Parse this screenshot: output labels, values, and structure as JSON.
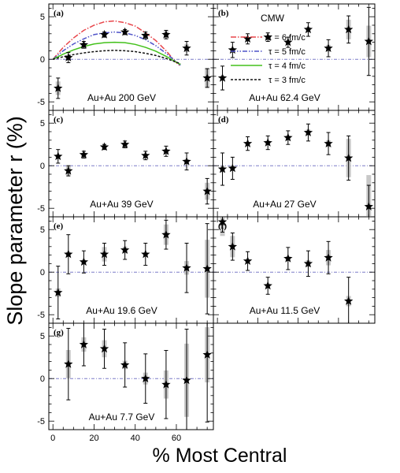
{
  "figure": {
    "ylabel": "Slope parameter r (%)",
    "xlabel": "% Most Central"
  },
  "chart_data": {
    "type": "scatter",
    "xlim": [
      -2,
      78
    ],
    "ylim": [
      -6,
      6.5
    ],
    "x_ticks": [
      0,
      20,
      40,
      60
    ],
    "y_ticks": [
      -5,
      0,
      5
    ],
    "colors": {
      "tau6": "#e8474c",
      "tau5": "#4f53c8",
      "tau4": "#43c11b",
      "tau3": "#111111",
      "sys_band": "#c8c8c8",
      "zero_line": "#7c7cc8"
    },
    "legend": {
      "title": "CMW",
      "location": "top-right of panel (a) row",
      "entries": [
        {
          "label": "τ = 6 fm/c",
          "style": "dashdot",
          "color_key": "tau6"
        },
        {
          "label": "τ = 5 fm/c",
          "style": "dashdotdot",
          "color_key": "tau5"
        },
        {
          "label": "τ = 4 fm/c",
          "style": "solid",
          "color_key": "tau4"
        },
        {
          "label": "τ = 3 fm/c",
          "style": "dashed",
          "color_key": "tau3"
        }
      ]
    },
    "model_curves": [
      {
        "name": "τ = 6 fm/c",
        "color_key": "tau6",
        "dash": "7,2,1.5,2",
        "x": [
          0,
          5,
          10,
          15,
          20,
          25,
          30,
          35,
          40,
          45,
          50,
          55,
          60,
          62
        ],
        "y": [
          0,
          1.4,
          2.5,
          3.4,
          4.0,
          4.4,
          4.5,
          4.3,
          3.9,
          3.1,
          2.2,
          1.0,
          -0.4,
          -0.8
        ]
      },
      {
        "name": "τ = 5 fm/c",
        "color_key": "tau5",
        "dash": "6,2,1.5,2,1.5,2",
        "x": [
          0,
          5,
          10,
          15,
          20,
          25,
          30,
          35,
          40,
          45,
          50,
          55,
          60,
          62
        ],
        "y": [
          0,
          1.0,
          1.8,
          2.4,
          2.9,
          3.1,
          3.2,
          3.1,
          2.8,
          2.3,
          1.6,
          0.7,
          -0.3,
          -0.7
        ]
      },
      {
        "name": "τ = 4 fm/c",
        "color_key": "tau4",
        "dash": "",
        "x": [
          0,
          5,
          10,
          15,
          20,
          25,
          30,
          35,
          40,
          45,
          50,
          55,
          60,
          62
        ],
        "y": [
          0,
          0.6,
          1.1,
          1.5,
          1.8,
          1.95,
          2.0,
          1.95,
          1.75,
          1.4,
          0.95,
          0.35,
          -0.35,
          -0.6
        ]
      },
      {
        "name": "τ = 3 fm/c",
        "color_key": "tau3",
        "dash": "3,2",
        "x": [
          0,
          5,
          10,
          15,
          20,
          25,
          30,
          35,
          40,
          45,
          50,
          55,
          60,
          62
        ],
        "y": [
          0,
          0.3,
          0.55,
          0.75,
          0.9,
          1.0,
          1.05,
          1.0,
          0.9,
          0.7,
          0.45,
          0.1,
          -0.35,
          -0.5
        ]
      }
    ],
    "panels": [
      {
        "id": "a",
        "label": "(a)",
        "system": "Au+Au 200 GeV",
        "curves": true,
        "points": [
          {
            "x": 2.5,
            "y": -3.4,
            "err": 1.2,
            "sys": 1.6
          },
          {
            "x": 7.5,
            "y": 0.2,
            "err": 0.6,
            "sys": 0.5
          },
          {
            "x": 15,
            "y": 1.7,
            "err": 0.4,
            "sys": 0.4
          },
          {
            "x": 25,
            "y": 2.9,
            "err": 0.3,
            "sys": 0.3
          },
          {
            "x": 35,
            "y": 3.2,
            "err": 0.3,
            "sys": 0.35
          },
          {
            "x": 45,
            "y": 2.8,
            "err": 0.4,
            "sys": 0.4
          },
          {
            "x": 55,
            "y": 2.9,
            "err": 0.5,
            "sys": 0.8
          },
          {
            "x": 65,
            "y": 1.3,
            "err": 0.8,
            "sys": 0.9
          },
          {
            "x": 75,
            "y": -2.2,
            "err": 1.1,
            "sys": 2.3
          }
        ]
      },
      {
        "id": "b",
        "label": "(b)",
        "system": "Au+Au 62.4 GeV",
        "curves": false,
        "points": [
          {
            "x": 2.5,
            "y": -2.2,
            "err": 1.4,
            "sys": 0.6
          },
          {
            "x": 7.5,
            "y": 1.1,
            "err": 0.9,
            "sys": 0.4
          },
          {
            "x": 15,
            "y": 2.4,
            "err": 0.6,
            "sys": 0.4
          },
          {
            "x": 25,
            "y": 2.6,
            "err": 0.5,
            "sys": 0.4
          },
          {
            "x": 35,
            "y": 2.0,
            "err": 0.6,
            "sys": 0.3
          },
          {
            "x": 45,
            "y": 3.5,
            "err": 0.8,
            "sys": 0.6
          },
          {
            "x": 55,
            "y": 1.3,
            "err": 1.0,
            "sys": 0.8
          },
          {
            "x": 65,
            "y": 3.5,
            "err": 1.6,
            "sys": 2.3
          },
          {
            "x": 75,
            "y": 2.1,
            "err": 4.0,
            "sys": 3.7
          }
        ]
      },
      {
        "id": "c",
        "label": "(c)",
        "system": "Au+Au 39 GeV",
        "curves": false,
        "points": [
          {
            "x": 2.5,
            "y": 1.1,
            "err": 0.8,
            "sys": 0.3
          },
          {
            "x": 7.5,
            "y": -0.6,
            "err": 0.6,
            "sys": 1.1
          },
          {
            "x": 15,
            "y": 1.3,
            "err": 0.4,
            "sys": 0.4
          },
          {
            "x": 25,
            "y": 2.2,
            "err": 0.3,
            "sys": 0.3
          },
          {
            "x": 35,
            "y": 2.5,
            "err": 0.4,
            "sys": 0.3
          },
          {
            "x": 45,
            "y": 1.2,
            "err": 0.5,
            "sys": 0.3
          },
          {
            "x": 55,
            "y": 1.7,
            "err": 0.6,
            "sys": 0.5
          },
          {
            "x": 65,
            "y": 0.5,
            "err": 1.0,
            "sys": 0.5
          },
          {
            "x": 75,
            "y": -3.0,
            "err": 1.5,
            "sys": 2.0
          }
        ]
      },
      {
        "id": "d",
        "label": "(d)",
        "system": "Au+Au 27 GeV",
        "curves": false,
        "points": [
          {
            "x": 2.5,
            "y": -0.4,
            "err": 1.9,
            "sys": 0.8
          },
          {
            "x": 7.5,
            "y": -0.3,
            "err": 1.3,
            "sys": 0.6
          },
          {
            "x": 15,
            "y": 2.6,
            "err": 0.8,
            "sys": 0.4
          },
          {
            "x": 25,
            "y": 2.7,
            "err": 0.8,
            "sys": 0.5
          },
          {
            "x": 35,
            "y": 3.3,
            "err": 0.8,
            "sys": 0.4
          },
          {
            "x": 45,
            "y": 3.9,
            "err": 1.0,
            "sys": 0.7
          },
          {
            "x": 55,
            "y": 2.6,
            "err": 1.3,
            "sys": 0.8
          },
          {
            "x": 65,
            "y": 0.9,
            "err": 2.6,
            "sys": 4.5
          },
          {
            "x": 75,
            "y": -4.8,
            "err": 2.5,
            "sys": 7.4
          }
        ]
      },
      {
        "id": "e",
        "label": "(e)",
        "system": "Au+Au 19.6 GeV",
        "curves": false,
        "points": [
          {
            "x": 2.5,
            "y": -2.4,
            "err": 3.1,
            "sys": 1.0
          },
          {
            "x": 7.5,
            "y": 2.1,
            "err": 2.3,
            "sys": 0.6
          },
          {
            "x": 15,
            "y": 1.2,
            "err": 1.3,
            "sys": 0.5
          },
          {
            "x": 25,
            "y": 2.1,
            "err": 1.3,
            "sys": 1.7
          },
          {
            "x": 35,
            "y": 2.6,
            "err": 1.1,
            "sys": 0.8
          },
          {
            "x": 45,
            "y": 2.1,
            "err": 1.3,
            "sys": 0.4
          },
          {
            "x": 55,
            "y": 4.4,
            "err": 1.7,
            "sys": 2.4
          },
          {
            "x": 65,
            "y": 0.5,
            "err": 2.9,
            "sys": 1.6
          },
          {
            "x": 75,
            "y": 0.4,
            "err": 5.3,
            "sys": 6.8
          }
        ]
      },
      {
        "id": "f",
        "label": "(f)",
        "system": "Au+Au 11.5 GeV",
        "curves": false,
        "points": [
          {
            "x": 2.5,
            "y": 5.9,
            "err": 1.2,
            "sys": 3.3
          },
          {
            "x": 7.5,
            "y": 3.0,
            "err": 1.6,
            "sys": 2.5
          },
          {
            "x": 15,
            "y": 1.3,
            "err": 1.1,
            "sys": 0.4
          },
          {
            "x": 25,
            "y": -1.6,
            "err": 1.0,
            "sys": 0.5
          },
          {
            "x": 35,
            "y": 1.6,
            "err": 1.3,
            "sys": 0.5
          },
          {
            "x": 45,
            "y": 1.0,
            "err": 1.5,
            "sys": 0.8
          },
          {
            "x": 55,
            "y": 1.7,
            "err": 1.9,
            "sys": 1.8
          },
          {
            "x": 65,
            "y": -3.4,
            "err": 2.8,
            "sys": 1.2
          }
        ]
      },
      {
        "id": "g",
        "label": "(g)",
        "system": "Au+Au 7.7 GeV",
        "curves": false,
        "points": [
          {
            "x": 7.5,
            "y": 1.7,
            "err": 4.2,
            "sys": 3.3
          },
          {
            "x": 15,
            "y": 4.0,
            "err": 2.5,
            "sys": 1.7
          },
          {
            "x": 25,
            "y": 3.5,
            "err": 2.3,
            "sys": 2.0
          },
          {
            "x": 35,
            "y": 1.6,
            "err": 2.6,
            "sys": 1.0
          },
          {
            "x": 45,
            "y": 0.0,
            "err": 2.9,
            "sys": 1.4
          },
          {
            "x": 55,
            "y": -0.7,
            "err": 4.0,
            "sys": 3.3
          },
          {
            "x": 65,
            "y": -0.2,
            "err": 6.0,
            "sys": 8.6
          },
          {
            "x": 75,
            "y": 2.8,
            "err": 7.9,
            "sys": 6.5
          }
        ]
      }
    ]
  }
}
